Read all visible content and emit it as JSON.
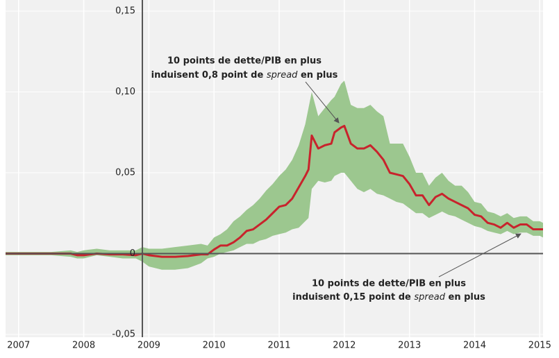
{
  "chart_data": {
    "type": "line",
    "x": [
      2006.8,
      2007.5,
      2007.8,
      2007.9,
      2008.0,
      2008.2,
      2008.4,
      2008.6,
      2008.8,
      2008.9,
      2009.0,
      2009.2,
      2009.4,
      2009.6,
      2009.8,
      2009.9,
      2010.0,
      2010.1,
      2010.2,
      2010.3,
      2010.4,
      2010.5,
      2010.6,
      2010.7,
      2010.8,
      2010.9,
      2011.0,
      2011.1,
      2011.2,
      2011.3,
      2011.4,
      2011.45,
      2011.5,
      2011.6,
      2011.7,
      2011.8,
      2011.85,
      2011.95,
      2012.0,
      2012.1,
      2012.2,
      2012.3,
      2012.4,
      2012.5,
      2012.6,
      2012.7,
      2012.8,
      2012.9,
      2013.0,
      2013.1,
      2013.2,
      2013.3,
      2013.4,
      2013.5,
      2013.6,
      2013.7,
      2013.8,
      2013.9,
      2014.0,
      2014.1,
      2014.2,
      2014.3,
      2014.4,
      2014.5,
      2014.6,
      2014.7,
      2014.8,
      2014.9,
      2015.0,
      2015.05
    ],
    "series": [
      {
        "color": "#c8232c",
        "values": [
          0,
          0,
          0,
          -0.001,
          -0.001,
          0,
          -0.0005,
          -0.0005,
          -0.001,
          0,
          -0.001,
          -0.002,
          -0.002,
          -0.0015,
          -0.0005,
          -0.0005,
          0.0025,
          0.005,
          0.005,
          0.007,
          0.01,
          0.014,
          0.015,
          0.018,
          0.021,
          0.025,
          0.029,
          0.03,
          0.034,
          0.041,
          0.048,
          0.052,
          0.073,
          0.065,
          0.067,
          0.068,
          0.075,
          0.078,
          0.079,
          0.068,
          0.065,
          0.065,
          0.067,
          0.063,
          0.058,
          0.05,
          0.049,
          0.048,
          0.043,
          0.036,
          0.036,
          0.03,
          0.035,
          0.037,
          0.034,
          0.032,
          0.03,
          0.028,
          0.024,
          0.023,
          0.019,
          0.018,
          0.016,
          0.019,
          0.016,
          0.018,
          0.018,
          0.015,
          0.015,
          0.015
        ]
      }
    ],
    "band": {
      "color": "#9cc78f",
      "upper": [
        0.001,
        0.001,
        0.002,
        0.001,
        0.002,
        0.003,
        0.002,
        0.002,
        0.002,
        0.004,
        0.003,
        0.003,
        0.004,
        0.005,
        0.006,
        0.005,
        0.01,
        0.012,
        0.015,
        0.02,
        0.023,
        0.027,
        0.03,
        0.034,
        0.039,
        0.043,
        0.048,
        0.052,
        0.058,
        0.067,
        0.08,
        0.09,
        0.1,
        0.085,
        0.09,
        0.095,
        0.097,
        0.105,
        0.107,
        0.092,
        0.09,
        0.09,
        0.092,
        0.088,
        0.085,
        0.068,
        0.068,
        0.068,
        0.06,
        0.05,
        0.05,
        0.042,
        0.047,
        0.05,
        0.045,
        0.042,
        0.042,
        0.038,
        0.032,
        0.031,
        0.026,
        0.025,
        0.023,
        0.025,
        0.022,
        0.023,
        0.023,
        0.02,
        0.02,
        0.019
      ],
      "lower": [
        -0.001,
        -0.001,
        -0.002,
        -0.003,
        -0.003,
        -0.001,
        -0.002,
        -0.003,
        -0.003,
        -0.005,
        -0.008,
        -0.01,
        -0.01,
        -0.009,
        -0.006,
        -0.003,
        -0.002,
        0,
        0.001,
        0.002,
        0.004,
        0.006,
        0.006,
        0.008,
        0.009,
        0.011,
        0.012,
        0.013,
        0.015,
        0.016,
        0.02,
        0.022,
        0.04,
        0.045,
        0.044,
        0.045,
        0.048,
        0.05,
        0.05,
        0.045,
        0.04,
        0.038,
        0.04,
        0.037,
        0.036,
        0.034,
        0.032,
        0.031,
        0.028,
        0.025,
        0.025,
        0.022,
        0.024,
        0.026,
        0.024,
        0.023,
        0.021,
        0.019,
        0.017,
        0.016,
        0.014,
        0.013,
        0.012,
        0.014,
        0.012,
        0.013,
        0.013,
        0.011,
        0.011,
        0.01
      ]
    },
    "xlim": [
      2006.8,
      2015.05
    ],
    "ylim": [
      -0.05,
      0.15
    ],
    "xticks": [
      2007,
      2008,
      2009,
      2010,
      2011,
      2012,
      2013,
      2014,
      2015
    ],
    "yticks": [
      {
        "value": -0.05,
        "label": "-0,05"
      },
      0,
      {
        "value": 0.05,
        "label": "0,05"
      },
      {
        "value": 0.1,
        "label": "0,10"
      },
      {
        "value": 0.15,
        "label": "0,15"
      }
    ],
    "yaxis_at": 2008.9,
    "grid": true,
    "annotations": [
      {
        "line1": "10 points de dette/PIB en plus",
        "line2": [
          "induisent 0,8 point de",
          "spread",
          "en plus"
        ]
      },
      {
        "line1": "10 points de dette/PIB en plus",
        "line2": [
          "induisent 0,15 point de",
          "spread",
          "en plus"
        ]
      }
    ]
  }
}
